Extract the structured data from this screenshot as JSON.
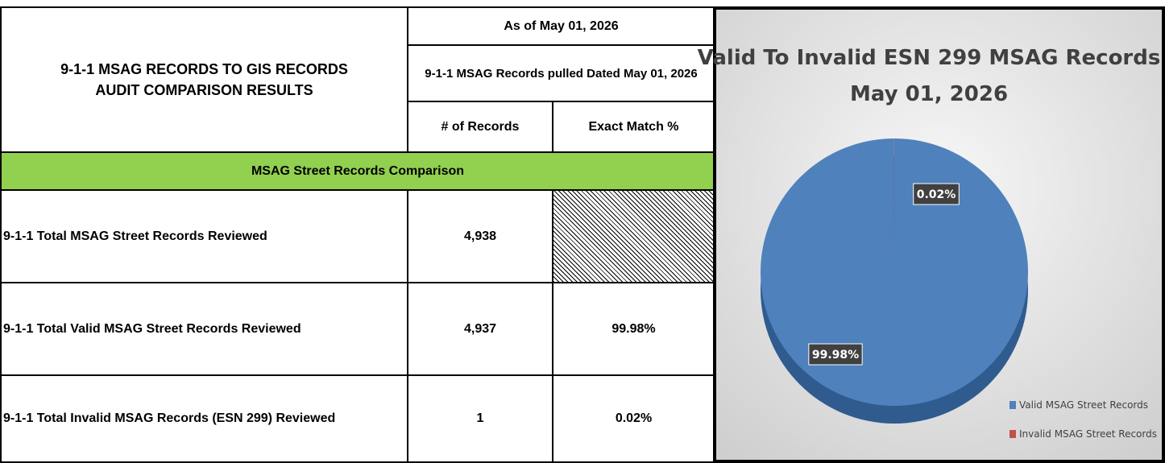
{
  "table": {
    "title": [
      "9-1-1 MSAG RECORDS TO GIS RECORDS",
      "AUDIT COMPARISON RESULTS"
    ],
    "as_of": "As of May 01, 2026",
    "pulled": "9-1-1 MSAG Records pulled Dated May 01, 2026",
    "headers": [
      "# of Records",
      "Exact Match %"
    ],
    "section": "MSAG Street Records Comparison",
    "rows": [
      {
        "label": "9-1-1 Total MSAG Street Records Reviewed",
        "count": "4,938"
      },
      {
        "label": "9-1-1 Total Valid MSAG Street Records Reviewed",
        "count": "4,937",
        "match": "99.98%"
      },
      {
        "label": "9-1-1 Total Invalid MSAG Records (ESN 299) Reviewed",
        "count": "1",
        "match": "0.02%"
      }
    ]
  },
  "chart_data": {
    "type": "pie",
    "title": "Valid To Invalid ESN 299 MSAG Records",
    "subtitle": "May 01, 2026",
    "categories": [
      "Valid MSAG Street Records",
      "Invalid MSAG Street Records"
    ],
    "values": [
      99.98,
      0.02
    ],
    "value_labels": [
      "99.98%",
      "0.02%"
    ],
    "colors": [
      "#4f81bd",
      "#c0504d"
    ],
    "legend": "bottom-right"
  }
}
